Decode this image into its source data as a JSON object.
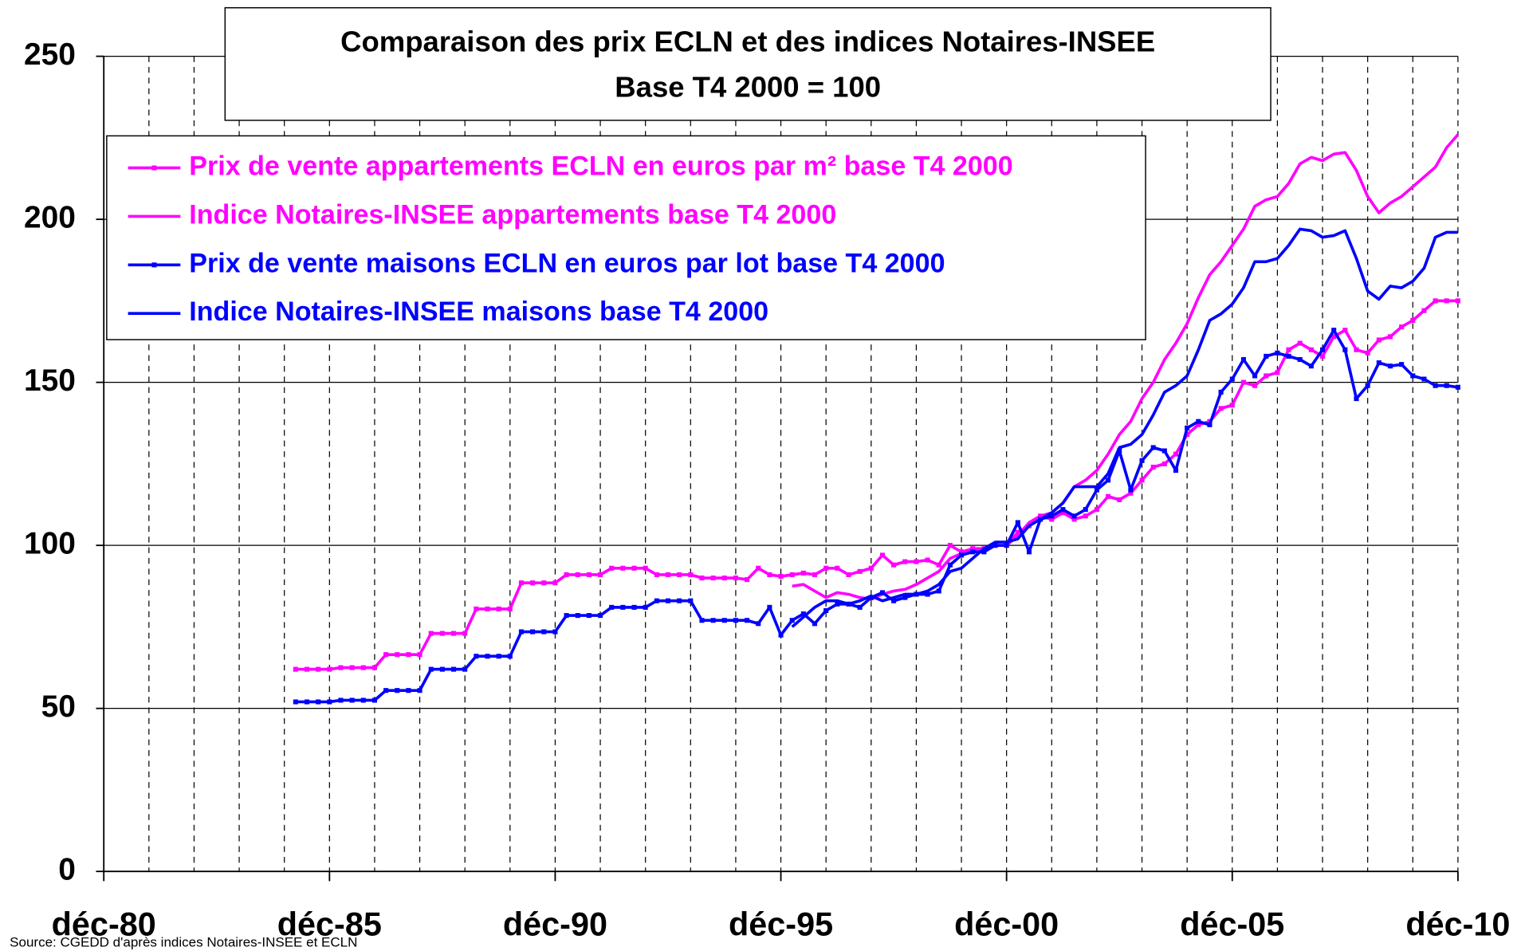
{
  "chart_data": {
    "type": "line",
    "title": "Comparaison des prix ECLN et des indices Notaires-INSEE",
    "subtitle": "Base T4 2000 = 100",
    "source": "Source: CGEDD d'après indices Notaires-INSEE et ECLN",
    "x": [
      1985.17,
      1985.42,
      1985.67,
      1985.92,
      1986.17,
      1986.42,
      1986.67,
      1986.92,
      1987.17,
      1987.42,
      1987.67,
      1987.92,
      1988.17,
      1988.42,
      1988.67,
      1988.92,
      1989.17,
      1989.42,
      1989.67,
      1989.92,
      1990.17,
      1990.42,
      1990.67,
      1990.92,
      1991.17,
      1991.42,
      1991.67,
      1991.92,
      1992.17,
      1992.42,
      1992.67,
      1992.92,
      1993.17,
      1993.42,
      1993.67,
      1993.92,
      1994.17,
      1994.42,
      1994.67,
      1994.92,
      1995.17,
      1995.42,
      1995.67,
      1995.92,
      1996.17,
      1996.42,
      1996.67,
      1996.92,
      1997.17,
      1997.42,
      1997.67,
      1997.92,
      1998.17,
      1998.42,
      1998.67,
      1998.92,
      1999.17,
      1999.42,
      1999.67,
      1999.92,
      2000.17,
      2000.42,
      2000.67,
      2000.92,
      2001.17,
      2001.42,
      2001.67,
      2001.92,
      2002.17,
      2002.42,
      2002.67,
      2002.92,
      2003.17,
      2003.42,
      2003.67,
      2003.92,
      2004.17,
      2004.42,
      2004.67,
      2004.92,
      2005.17,
      2005.42,
      2005.67,
      2005.92,
      2006.17,
      2006.42,
      2006.67,
      2006.92,
      2007.17,
      2007.42,
      2007.67,
      2007.92,
      2008.17,
      2008.42,
      2008.67,
      2008.92,
      2009.17,
      2009.42,
      2009.67,
      2009.92,
      2010.17,
      2010.42,
      2010.67,
      2010.92
    ],
    "series": [
      {
        "name": "Prix de vente appartements ECLN en euros par m² base T4 2000",
        "color": "#ff00ff",
        "marker": true,
        "values": [
          62,
          62,
          62,
          62,
          62.5,
          62.5,
          62.5,
          62.5,
          66.5,
          66.5,
          66.5,
          66.5,
          73,
          73,
          73,
          73,
          80.5,
          80.5,
          80.5,
          80.5,
          88.5,
          88.5,
          88.5,
          88.5,
          91,
          91,
          91,
          91,
          93,
          93,
          93,
          93,
          91,
          91,
          91,
          91,
          90,
          90,
          90,
          90,
          89.5,
          93,
          91,
          90.5,
          91,
          91.5,
          91,
          93,
          93,
          91,
          92,
          93,
          97,
          94,
          95,
          95,
          95.5,
          94,
          100,
          98,
          99,
          99,
          100,
          100,
          104,
          106,
          109,
          108,
          110,
          108,
          109,
          111,
          115,
          114,
          116,
          120,
          124,
          125,
          128,
          134,
          137,
          138,
          142,
          143,
          150,
          149,
          152,
          153,
          160,
          162,
          160,
          158,
          164,
          166,
          160,
          159,
          163,
          164,
          167,
          169,
          172,
          175,
          175,
          175
        ]
      },
      {
        "name": "Indice Notaires-INSEE appartements base T4 2000",
        "color": "#ff00ff",
        "marker": false,
        "values": [
          null,
          null,
          null,
          null,
          null,
          null,
          null,
          null,
          null,
          null,
          null,
          null,
          null,
          null,
          null,
          null,
          null,
          null,
          null,
          null,
          null,
          null,
          null,
          null,
          null,
          null,
          null,
          null,
          null,
          null,
          null,
          null,
          null,
          null,
          null,
          null,
          null,
          null,
          null,
          null,
          null,
          null,
          null,
          null,
          87.5,
          88,
          86,
          84,
          85.5,
          85,
          84,
          83.5,
          85,
          86,
          86.5,
          88,
          90,
          92,
          96,
          97.5,
          98,
          99,
          100,
          100,
          103,
          107,
          109,
          110,
          113,
          118,
          120,
          123,
          128,
          134,
          138,
          145,
          150,
          157,
          162,
          168,
          176,
          183,
          187,
          192,
          197,
          204,
          206,
          207,
          211,
          217,
          219,
          218,
          220,
          220.5,
          215,
          207,
          202,
          205,
          207,
          210,
          213,
          216,
          222,
          226
        ]
      },
      {
        "name": "Prix de vente maisons ECLN en euros par lot base T4 2000",
        "color": "#0000ff",
        "marker": true,
        "values": [
          52,
          52,
          52,
          52,
          52.5,
          52.5,
          52.5,
          52.5,
          55.5,
          55.5,
          55.5,
          55.5,
          62,
          62,
          62,
          62,
          66,
          66,
          66,
          66,
          73.5,
          73.5,
          73.5,
          73.5,
          78.5,
          78.5,
          78.5,
          78.5,
          81,
          81,
          81,
          81,
          83,
          83,
          83,
          83,
          77,
          77,
          77,
          77,
          77,
          76,
          81,
          72.5,
          77,
          79,
          76,
          80,
          82,
          82,
          81,
          84,
          85.5,
          83,
          84,
          85,
          85,
          86,
          94,
          97,
          98,
          98,
          100,
          100,
          107,
          98,
          108,
          109,
          111,
          109,
          111,
          117,
          120,
          129,
          117,
          126,
          130,
          129,
          123,
          136,
          138,
          137,
          147,
          151,
          157,
          152,
          158,
          159,
          158,
          157,
          155,
          160,
          166,
          160,
          145,
          149,
          156,
          155,
          155.5,
          152,
          151,
          149,
          149,
          148.5
        ]
      },
      {
        "name": "Indice Notaires-INSEE maisons base T4 2000",
        "color": "#0000ff",
        "marker": false,
        "values": [
          null,
          null,
          null,
          null,
          null,
          null,
          null,
          null,
          null,
          null,
          null,
          null,
          null,
          null,
          null,
          null,
          null,
          null,
          null,
          null,
          null,
          null,
          null,
          null,
          null,
          null,
          null,
          null,
          null,
          null,
          null,
          null,
          null,
          null,
          null,
          null,
          null,
          null,
          null,
          null,
          null,
          null,
          null,
          null,
          75,
          78,
          81,
          83,
          83,
          82,
          83,
          84.5,
          83,
          84,
          85,
          85,
          86,
          88,
          92,
          93,
          96,
          99,
          101,
          101,
          102,
          106,
          108,
          110,
          113,
          118,
          118,
          118,
          122,
          130,
          131,
          134,
          140,
          147,
          149,
          152,
          160,
          169,
          171,
          174,
          179,
          187,
          187,
          188,
          192,
          197,
          196.5,
          194.5,
          195,
          196.5,
          188,
          178,
          175.5,
          179.5,
          179,
          181,
          185,
          194.5,
          196,
          196
        ]
      }
    ],
    "xlim": [
      1980.92,
      2010.92
    ],
    "xticks": [
      {
        "value": 1980.92,
        "label": "déc-80"
      },
      {
        "value": 1985.92,
        "label": "déc-85"
      },
      {
        "value": 1990.92,
        "label": "déc-90"
      },
      {
        "value": 1995.92,
        "label": "déc-95"
      },
      {
        "value": 2000.92,
        "label": "déc-00"
      },
      {
        "value": 2005.92,
        "label": "déc-05"
      },
      {
        "value": 2010.92,
        "label": "déc-10"
      }
    ],
    "xgrid": [
      1981.92,
      1982.92,
      1983.92,
      1984.92,
      1985.92,
      1986.92,
      1987.92,
      1988.92,
      1989.92,
      1990.92,
      1991.92,
      1992.92,
      1993.92,
      1994.92,
      1995.92,
      1996.92,
      1997.92,
      1998.92,
      1999.92,
      2000.92,
      2001.92,
      2002.92,
      2003.92,
      2004.92,
      2005.92,
      2006.92,
      2007.92,
      2008.92,
      2009.92,
      2010.92
    ],
    "ylim": [
      0,
      250
    ],
    "yticks": [
      0,
      50,
      100,
      150,
      200,
      250
    ],
    "grid": true,
    "legend": "upper left"
  }
}
